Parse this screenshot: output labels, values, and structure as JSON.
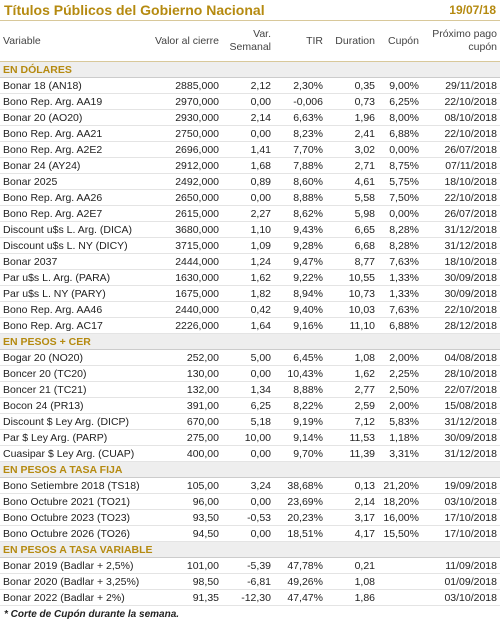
{
  "header": {
    "title": "Títulos Públicos del Gobierno Nacional",
    "date": "19/07/18"
  },
  "columns": [
    "Variable",
    "Valor al cierre",
    "Var. Semanal",
    "TIR",
    "Duration",
    "Cupón",
    "Próximo pago cupón"
  ],
  "sections": [
    {
      "title": "EN DÓLARES",
      "rows": [
        [
          "Bonar 18 (AN18)",
          "2885,000",
          "2,12",
          "2,30%",
          "0,35",
          "9,00%",
          "29/11/2018"
        ],
        [
          "Bono Rep. Arg. AA19",
          "2970,000",
          "0,00",
          "-0,006",
          "0,73",
          "6,25%",
          "22/10/2018"
        ],
        [
          "Bonar 20 (AO20)",
          "2930,000",
          "2,14",
          "6,63%",
          "1,96",
          "8,00%",
          "08/10/2018"
        ],
        [
          "Bono Rep. Arg. AA21",
          "2750,000",
          "0,00",
          "8,23%",
          "2,41",
          "6,88%",
          "22/10/2018"
        ],
        [
          "Bono Rep. Arg. A2E2",
          "2696,000",
          "1,41",
          "7,70%",
          "3,02",
          "0,00%",
          "26/07/2018"
        ],
        [
          "Bonar 24 (AY24)",
          "2912,000",
          "1,68",
          "7,88%",
          "2,71",
          "8,75%",
          "07/11/2018"
        ],
        [
          "Bonar 2025",
          "2492,000",
          "0,89",
          "8,60%",
          "4,61",
          "5,75%",
          "18/10/2018"
        ],
        [
          "Bono Rep. Arg. AA26",
          "2650,000",
          "0,00",
          "8,88%",
          "5,58",
          "7,50%",
          "22/10/2018"
        ],
        [
          "Bono Rep. Arg. A2E7",
          "2615,000",
          "2,27",
          "8,62%",
          "5,98",
          "0,00%",
          "26/07/2018"
        ],
        [
          "Discount u$s L. Arg. (DICA)",
          "3680,000",
          "1,10",
          "9,43%",
          "6,65",
          "8,28%",
          "31/12/2018"
        ],
        [
          "Discount u$s L. NY (DICY)",
          "3715,000",
          "1,09",
          "9,28%",
          "6,68",
          "8,28%",
          "31/12/2018"
        ],
        [
          "Bonar 2037",
          "2444,000",
          "1,24",
          "9,47%",
          "8,77",
          "7,63%",
          "18/10/2018"
        ],
        [
          "Par u$s L. Arg. (PARA)",
          "1630,000",
          "1,62",
          "9,22%",
          "10,55",
          "1,33%",
          "30/09/2018"
        ],
        [
          "Par u$s L. NY (PARY)",
          "1675,000",
          "1,82",
          "8,94%",
          "10,73",
          "1,33%",
          "30/09/2018"
        ],
        [
          "Bono Rep. Arg. AA46",
          "2440,000",
          "0,42",
          "9,40%",
          "10,03",
          "7,63%",
          "22/10/2018"
        ],
        [
          "Bono Rep. Arg. AC17",
          "2226,000",
          "1,64",
          "9,16%",
          "11,10",
          "6,88%",
          "28/12/2018"
        ]
      ]
    },
    {
      "title": "EN PESOS + CER",
      "rows": [
        [
          "Bogar 20 (NO20)",
          "252,00",
          "5,00",
          "6,45%",
          "1,08",
          "2,00%",
          "04/08/2018"
        ],
        [
          "Boncer 20 (TC20)",
          "130,00",
          "0,00",
          "10,43%",
          "1,62",
          "2,25%",
          "28/10/2018"
        ],
        [
          "Boncer 21 (TC21)",
          "132,00",
          "1,34",
          "8,88%",
          "2,77",
          "2,50%",
          "22/07/2018"
        ],
        [
          "Bocon 24 (PR13)",
          "391,00",
          "6,25",
          "8,22%",
          "2,59",
          "2,00%",
          "15/08/2018"
        ],
        [
          "Discount $ Ley Arg. (DICP)",
          "670,00",
          "5,18",
          "9,19%",
          "7,12",
          "5,83%",
          "31/12/2018"
        ],
        [
          "Par $ Ley Arg. (PARP)",
          "275,00",
          "10,00",
          "9,14%",
          "11,53",
          "1,18%",
          "30/09/2018"
        ],
        [
          "Cuasipar $ Ley Arg. (CUAP)",
          "400,00",
          "0,00",
          "9,70%",
          "11,39",
          "3,31%",
          "31/12/2018"
        ]
      ]
    },
    {
      "title": "EN PESOS A TASA FIJA",
      "rows": [
        [
          "Bono Setiembre 2018 (TS18)",
          "105,00",
          "3,24",
          "38,68%",
          "0,13",
          "21,20%",
          "19/09/2018"
        ],
        [
          "Bono Octubre 2021 (TO21)",
          "96,00",
          "0,00",
          "23,69%",
          "2,14",
          "18,20%",
          "03/10/2018"
        ],
        [
          "Bono Octubre 2023 (TO23)",
          "93,50",
          "-0,53",
          "20,23%",
          "3,17",
          "16,00%",
          "17/10/2018"
        ],
        [
          "Bono Octubre 2026 (TO26)",
          "94,50",
          "0,00",
          "18,51%",
          "4,17",
          "15,50%",
          "17/10/2018"
        ]
      ]
    },
    {
      "title": "EN PESOS A TASA VARIABLE",
      "rows": [
        [
          "Bonar 2019 (Badlar + 2,5%)",
          "101,00",
          "-5,39",
          "47,78%",
          "0,21",
          null,
          "11/09/2018"
        ],
        [
          "Bonar 2020 (Badlar + 3,25%)",
          "98,50",
          "-6,81",
          "49,26%",
          "1,08",
          null,
          "01/09/2018"
        ],
        [
          "Bonar 2022 (Badlar + 2%)",
          "91,35",
          "-12,30",
          "47,47%",
          "1,86",
          null,
          "03/10/2018"
        ]
      ]
    }
  ],
  "footnote": "* Corte de Cupón durante la semana."
}
